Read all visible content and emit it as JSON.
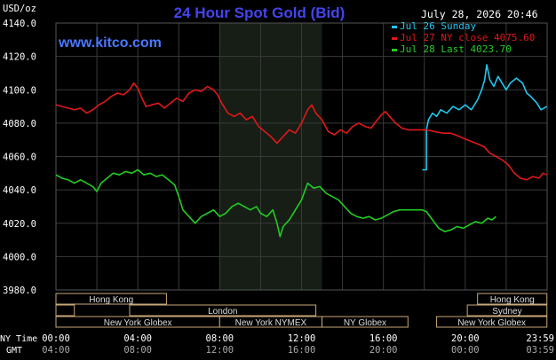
{
  "chart_data": {
    "type": "line",
    "title": "24 Hour Spot Gold (Bid)",
    "ylabel": "USD/oz",
    "timestamp": "July 28, 2026 20:46",
    "watermark": "www.kitco.com",
    "ylim": [
      3980,
      4140
    ],
    "y_ticks": [
      "4140.0",
      "4120.0",
      "4100.0",
      "4080.0",
      "4060.0",
      "4040.0",
      "4020.0",
      "4000.0",
      "3980.0"
    ],
    "x_row1_label": "NY Time",
    "x_row2_label": "GMT",
    "x_ticks_ny": [
      "00:00",
      "04:00",
      "08:00",
      "12:00",
      "16:00",
      "20:00",
      "23:59"
    ],
    "x_ticks_gmt": [
      "04:00",
      "08:00",
      "12:00",
      "16:00",
      "20:00",
      "00:00",
      "03:59"
    ],
    "grid": true,
    "legend_position": "top-right",
    "colors": {
      "background": "#000000",
      "grid": "#3a3a3a",
      "title": "#4444ee",
      "watermark": "#4a78ff",
      "text": "#ffffff",
      "session_text": "#dddddd",
      "highlight_band": "#161e16"
    },
    "highlight_band_hours": [
      8,
      13
    ],
    "series": [
      {
        "name": "Jul 26 Sunday",
        "color": "#22c6f0",
        "points": [
          [
            17.9,
            4052
          ],
          [
            18.1,
            4052
          ],
          [
            18.1,
            4076
          ],
          [
            18.2,
            4082
          ],
          [
            18.4,
            4086
          ],
          [
            18.6,
            4084
          ],
          [
            18.8,
            4088
          ],
          [
            19.1,
            4086
          ],
          [
            19.4,
            4090
          ],
          [
            19.7,
            4088
          ],
          [
            20.0,
            4091
          ],
          [
            20.3,
            4088
          ],
          [
            20.6,
            4094
          ],
          [
            20.8,
            4100
          ],
          [
            20.95,
            4106
          ],
          [
            21.05,
            4115
          ],
          [
            21.2,
            4106
          ],
          [
            21.4,
            4102
          ],
          [
            21.6,
            4108
          ],
          [
            21.8,
            4104
          ],
          [
            22.0,
            4100
          ],
          [
            22.2,
            4104
          ],
          [
            22.5,
            4107
          ],
          [
            22.8,
            4104
          ],
          [
            23.0,
            4098
          ],
          [
            23.2,
            4096
          ],
          [
            23.5,
            4092
          ],
          [
            23.7,
            4088
          ],
          [
            23.99,
            4090
          ]
        ]
      },
      {
        "name": "Jul 27 NY close 4075.60",
        "color": "#e01818",
        "points": [
          [
            0.0,
            4091
          ],
          [
            0.3,
            4090
          ],
          [
            0.6,
            4089
          ],
          [
            0.9,
            4088
          ],
          [
            1.2,
            4089
          ],
          [
            1.5,
            4086
          ],
          [
            1.8,
            4088
          ],
          [
            2.1,
            4091
          ],
          [
            2.4,
            4093
          ],
          [
            2.7,
            4096
          ],
          [
            3.0,
            4098
          ],
          [
            3.3,
            4097
          ],
          [
            3.6,
            4100
          ],
          [
            3.8,
            4104
          ],
          [
            4.0,
            4101
          ],
          [
            4.2,
            4095
          ],
          [
            4.4,
            4090
          ],
          [
            4.7,
            4091
          ],
          [
            5.0,
            4092
          ],
          [
            5.3,
            4089
          ],
          [
            5.6,
            4092
          ],
          [
            5.9,
            4095
          ],
          [
            6.2,
            4093
          ],
          [
            6.5,
            4098
          ],
          [
            6.8,
            4100
          ],
          [
            7.1,
            4099
          ],
          [
            7.4,
            4102
          ],
          [
            7.7,
            4100
          ],
          [
            7.9,
            4097
          ],
          [
            8.1,
            4092
          ],
          [
            8.4,
            4086
          ],
          [
            8.7,
            4084
          ],
          [
            9.0,
            4086
          ],
          [
            9.3,
            4082
          ],
          [
            9.6,
            4084
          ],
          [
            9.9,
            4078
          ],
          [
            10.2,
            4075
          ],
          [
            10.5,
            4072
          ],
          [
            10.8,
            4068
          ],
          [
            11.1,
            4072
          ],
          [
            11.4,
            4076
          ],
          [
            11.7,
            4074
          ],
          [
            12.0,
            4080
          ],
          [
            12.3,
            4088
          ],
          [
            12.5,
            4091
          ],
          [
            12.7,
            4086
          ],
          [
            13.0,
            4082
          ],
          [
            13.3,
            4075
          ],
          [
            13.6,
            4073
          ],
          [
            13.9,
            4076
          ],
          [
            14.2,
            4074
          ],
          [
            14.5,
            4078
          ],
          [
            14.8,
            4080
          ],
          [
            15.1,
            4078
          ],
          [
            15.4,
            4077
          ],
          [
            15.7,
            4082
          ],
          [
            15.9,
            4085
          ],
          [
            16.1,
            4087
          ],
          [
            16.3,
            4084
          ],
          [
            16.6,
            4080
          ],
          [
            16.9,
            4077
          ],
          [
            17.2,
            4076
          ],
          [
            17.9,
            4076
          ],
          [
            18.1,
            4076
          ],
          [
            18.5,
            4075
          ],
          [
            18.9,
            4074
          ],
          [
            19.3,
            4074
          ],
          [
            19.7,
            4072
          ],
          [
            20.1,
            4070
          ],
          [
            20.5,
            4068
          ],
          [
            20.9,
            4066
          ],
          [
            21.2,
            4062
          ],
          [
            21.5,
            4060
          ],
          [
            21.8,
            4058
          ],
          [
            22.1,
            4055
          ],
          [
            22.4,
            4050
          ],
          [
            22.7,
            4047
          ],
          [
            23.0,
            4046
          ],
          [
            23.3,
            4048
          ],
          [
            23.6,
            4047
          ],
          [
            23.8,
            4050
          ],
          [
            23.99,
            4049
          ]
        ]
      },
      {
        "name": "Jul 28 Last 4023.70",
        "color": "#22cc22",
        "points": [
          [
            0.0,
            4049
          ],
          [
            0.3,
            4047
          ],
          [
            0.6,
            4046
          ],
          [
            0.9,
            4044
          ],
          [
            1.2,
            4046
          ],
          [
            1.5,
            4044
          ],
          [
            1.8,
            4042
          ],
          [
            2.0,
            4039
          ],
          [
            2.2,
            4044
          ],
          [
            2.5,
            4047
          ],
          [
            2.8,
            4050
          ],
          [
            3.1,
            4049
          ],
          [
            3.4,
            4051
          ],
          [
            3.7,
            4050
          ],
          [
            4.0,
            4052
          ],
          [
            4.3,
            4049
          ],
          [
            4.6,
            4050
          ],
          [
            4.9,
            4048
          ],
          [
            5.2,
            4049
          ],
          [
            5.5,
            4046
          ],
          [
            5.8,
            4043
          ],
          [
            6.0,
            4036
          ],
          [
            6.2,
            4028
          ],
          [
            6.5,
            4024
          ],
          [
            6.8,
            4020
          ],
          [
            7.1,
            4024
          ],
          [
            7.4,
            4026
          ],
          [
            7.7,
            4028
          ],
          [
            8.0,
            4024
          ],
          [
            8.3,
            4026
          ],
          [
            8.6,
            4030
          ],
          [
            8.9,
            4032
          ],
          [
            9.2,
            4030
          ],
          [
            9.5,
            4028
          ],
          [
            9.8,
            4030
          ],
          [
            10.0,
            4026
          ],
          [
            10.3,
            4024
          ],
          [
            10.6,
            4028
          ],
          [
            10.8,
            4020
          ],
          [
            10.95,
            4012
          ],
          [
            11.1,
            4018
          ],
          [
            11.4,
            4022
          ],
          [
            11.7,
            4028
          ],
          [
            12.0,
            4034
          ],
          [
            12.3,
            4044
          ],
          [
            12.6,
            4041
          ],
          [
            12.9,
            4042
          ],
          [
            13.2,
            4038
          ],
          [
            13.5,
            4036
          ],
          [
            13.8,
            4034
          ],
          [
            14.1,
            4030
          ],
          [
            14.4,
            4026
          ],
          [
            14.7,
            4024
          ],
          [
            15.0,
            4023
          ],
          [
            15.3,
            4024
          ],
          [
            15.6,
            4022
          ],
          [
            15.9,
            4023
          ],
          [
            16.2,
            4025
          ],
          [
            16.5,
            4027
          ],
          [
            16.8,
            4028
          ],
          [
            17.2,
            4028
          ],
          [
            17.9,
            4028
          ],
          [
            18.1,
            4027
          ],
          [
            18.4,
            4022
          ],
          [
            18.7,
            4017
          ],
          [
            19.0,
            4015
          ],
          [
            19.3,
            4016
          ],
          [
            19.6,
            4018
          ],
          [
            19.9,
            4017
          ],
          [
            20.2,
            4019
          ],
          [
            20.5,
            4021
          ],
          [
            20.8,
            4020
          ],
          [
            21.1,
            4023
          ],
          [
            21.3,
            4022
          ],
          [
            21.5,
            4024
          ]
        ]
      }
    ],
    "session_rows": [
      [
        {
          "label": "Hong Kong",
          "start": 0.0,
          "end": 5.4
        },
        {
          "label": "Hong Kong",
          "start": 20.6,
          "end": 23.99
        }
      ],
      [
        {
          "label": "",
          "start": 0.0,
          "end": 0.9
        },
        {
          "label": "London",
          "start": 3.6,
          "end": 12.7
        },
        {
          "label": "Sydney",
          "start": 20.1,
          "end": 23.99
        }
      ],
      [
        {
          "label": "New York Globex",
          "start": 0.0,
          "end": 8.0
        },
        {
          "label": "New York NYMEX",
          "start": 8.0,
          "end": 13.0
        },
        {
          "label": "NY Globex",
          "start": 13.0,
          "end": 17.2
        },
        {
          "label": "New York Globex",
          "start": 18.6,
          "end": 23.99
        }
      ]
    ]
  }
}
